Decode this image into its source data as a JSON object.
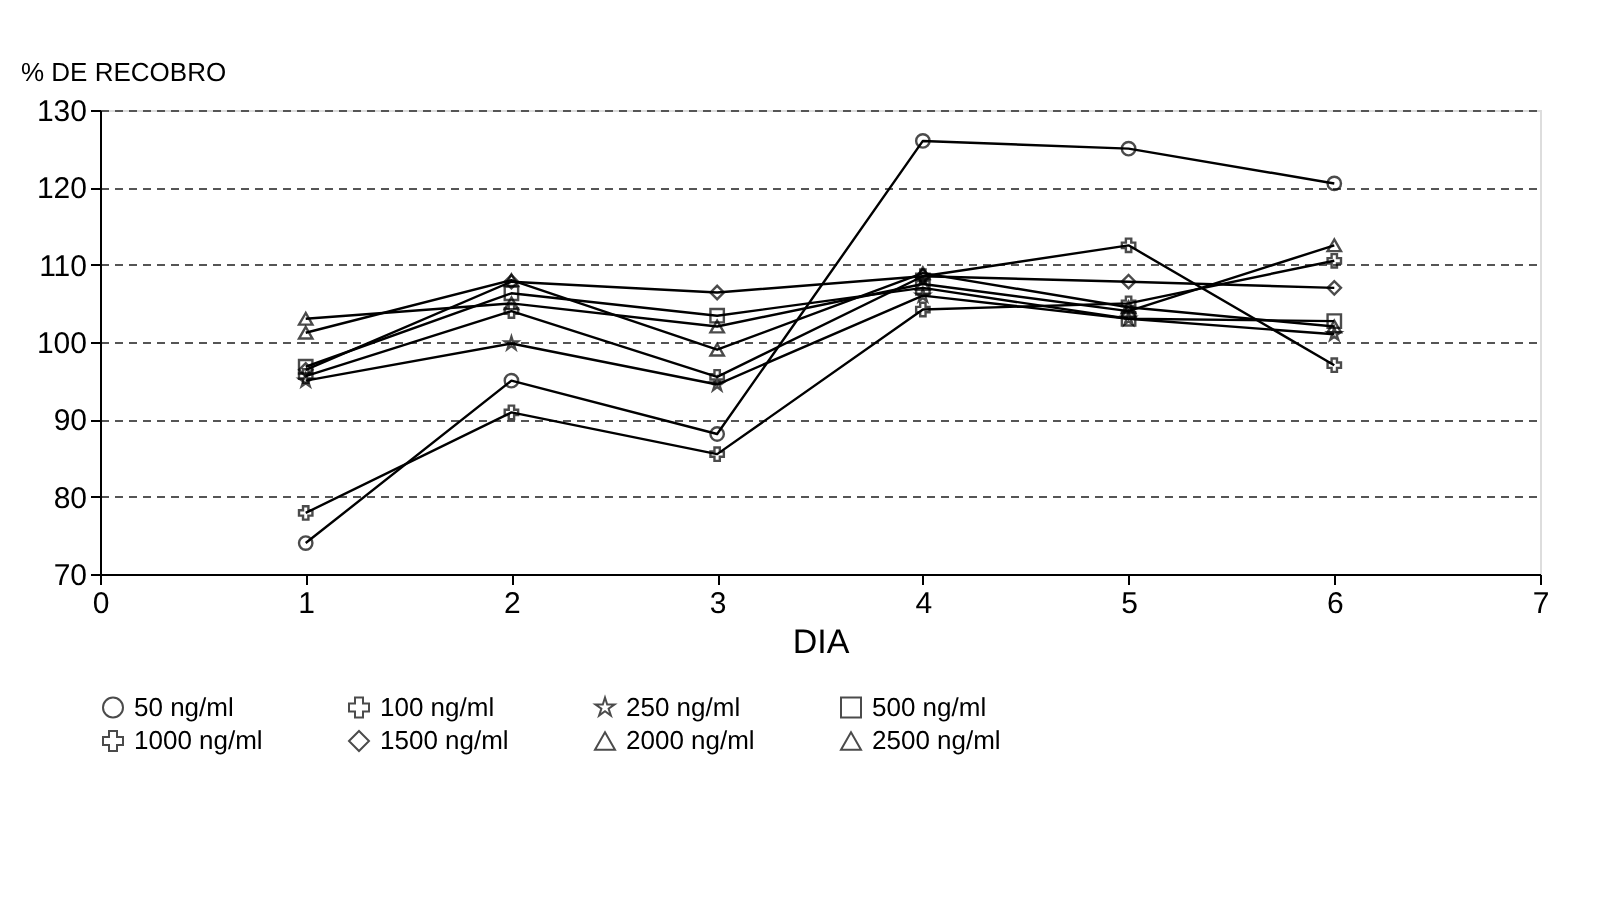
{
  "chart_data": {
    "type": "line",
    "xlabel": "DIA",
    "ylabel": "% DE RECOBRO",
    "x": [
      1,
      2,
      3,
      4,
      5,
      6
    ],
    "series": [
      {
        "name": "50 ng/ml",
        "color": "#000000",
        "marker": "circle",
        "values": [
          74,
          95,
          88.1,
          126,
          125,
          120.5
        ]
      },
      {
        "name": "100 ng/ml",
        "color": "#000000",
        "marker": "cross",
        "values": [
          77.9,
          90.9,
          85.5,
          104.2,
          105,
          110.5
        ]
      },
      {
        "name": "250 ng/ml",
        "color": "#000000",
        "marker": "star",
        "values": [
          95,
          99.8,
          94.5,
          106,
          103,
          101
        ]
      },
      {
        "name": "500 ng/ml",
        "color": "#000000",
        "marker": "square",
        "values": [
          96.8,
          106.3,
          103.4,
          107,
          103,
          102.7
        ]
      },
      {
        "name": "1000 ng/ml",
        "color": "#000000",
        "marker": "cross",
        "values": [
          95.6,
          104,
          95.5,
          108.5,
          112.5,
          97
        ]
      },
      {
        "name": "1500 ng/ml",
        "color": "#000000",
        "marker": "diamond",
        "values": [
          96.4,
          107.8,
          106.4,
          108.5,
          107.8,
          107
        ]
      },
      {
        "name": "2000 ng/ml",
        "color": "#000000",
        "marker": "triangle",
        "values": [
          101.2,
          108,
          99,
          108.9,
          104.5,
          102
        ]
      },
      {
        "name": "2500 ng/ml",
        "color": "#000000",
        "marker": "triangle",
        "values": [
          103,
          105,
          102,
          107.5,
          104,
          112.5
        ]
      }
    ],
    "xlim": [
      0,
      7
    ],
    "xticks": [
      0,
      1,
      2,
      3,
      4,
      5,
      6,
      7
    ],
    "ylim": [
      70,
      130
    ],
    "yticks": [
      70,
      80,
      90,
      100,
      110,
      120,
      130
    ],
    "grid": "y",
    "legend": "bottom",
    "line_style": "solid"
  }
}
